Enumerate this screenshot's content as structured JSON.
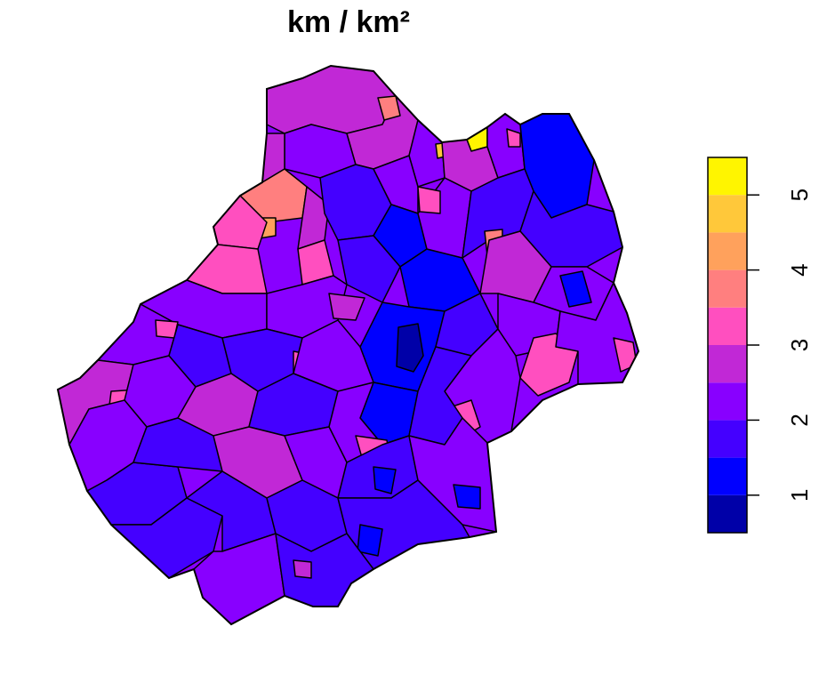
{
  "title": "km / km²",
  "legend": {
    "type": "color-bar",
    "range": [
      0.5,
      5.5
    ],
    "ticks": [
      {
        "value": 1,
        "label": "1"
      },
      {
        "value": 2,
        "label": "2"
      },
      {
        "value": 3,
        "label": "3"
      },
      {
        "value": 4,
        "label": "4"
      },
      {
        "value": 5,
        "label": "5"
      }
    ],
    "bins": [
      {
        "from": 0.5,
        "to": 1.0,
        "color": "#0000A8"
      },
      {
        "from": 1.0,
        "to": 1.5,
        "color": "#0000FF"
      },
      {
        "from": 1.5,
        "to": 2.0,
        "color": "#4400FF"
      },
      {
        "from": 2.0,
        "to": 2.5,
        "color": "#8800FF"
      },
      {
        "from": 2.5,
        "to": 3.0,
        "color": "#C128D6"
      },
      {
        "from": 3.0,
        "to": 3.5,
        "color": "#FF4FBF"
      },
      {
        "from": 3.5,
        "to": 4.0,
        "color": "#FF7F7F"
      },
      {
        "from": 4.0,
        "to": 4.5,
        "color": "#FFA15C"
      },
      {
        "from": 4.5,
        "to": 5.0,
        "color": "#FFC83A"
      },
      {
        "from": 5.0,
        "to": 5.5,
        "color": "#FFF500"
      }
    ]
  }
}
